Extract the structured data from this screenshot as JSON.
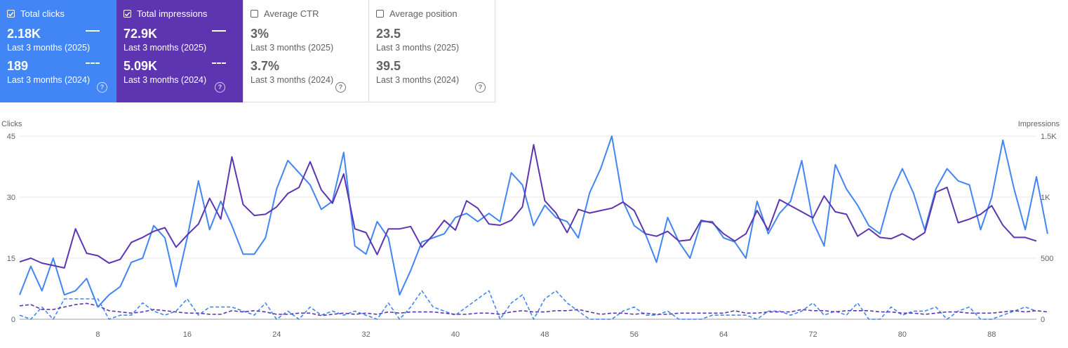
{
  "cards": {
    "clicks": {
      "label": "Total clicks",
      "checked": true,
      "current_value": "2.18K",
      "current_period": "Last 3 months (2025)",
      "previous_value": "189",
      "previous_period": "Last 3 months (2024)",
      "color": "#4285f4"
    },
    "impressions": {
      "label": "Total impressions",
      "checked": true,
      "current_value": "72.9K",
      "current_period": "Last 3 months (2025)",
      "previous_value": "5.09K",
      "previous_period": "Last 3 months (2024)",
      "color": "#5e35b1"
    },
    "ctr": {
      "label": "Average CTR",
      "checked": false,
      "current_value": "3%",
      "current_period": "Last 3 months (2025)",
      "previous_value": "3.7%",
      "previous_period": "Last 3 months (2024)"
    },
    "position": {
      "label": "Average position",
      "checked": false,
      "current_value": "23.5",
      "current_period": "Last 3 months (2025)",
      "previous_value": "39.5",
      "previous_period": "Last 3 months (2024)"
    }
  },
  "help_glyph": "?",
  "chart_data": {
    "type": "line",
    "ylabel_left": "Clicks",
    "ylabel_right": "Impressions",
    "yticks_left": [
      "0",
      "15",
      "30",
      "45"
    ],
    "yticks_right": [
      "0",
      "500",
      "1K",
      "1.5K"
    ],
    "ylim_left": [
      0,
      45
    ],
    "ylim_right": [
      0,
      1500
    ],
    "xlim": [
      1,
      92
    ],
    "xticks": [
      8,
      16,
      24,
      32,
      40,
      48,
      56,
      64,
      72,
      80,
      88
    ],
    "grid": true,
    "series": [
      {
        "axis": "left",
        "style": "solid",
        "color": "#4285f4",
        "values": [
          6,
          13,
          7,
          15,
          6,
          7,
          10,
          3,
          6,
          8,
          14,
          15,
          23,
          20,
          8,
          20,
          34,
          22,
          29,
          23,
          16,
          16,
          20,
          32,
          39,
          36,
          33,
          27,
          29,
          41,
          18,
          16,
          24,
          20,
          6,
          12,
          19,
          20,
          21,
          25,
          26,
          24,
          26,
          24,
          36,
          33,
          23,
          28,
          25,
          24,
          20,
          31,
          37,
          45,
          29,
          23,
          21,
          14,
          25,
          19,
          15,
          24,
          24,
          20,
          19,
          15,
          29,
          21,
          26,
          29,
          39,
          24,
          18,
          38,
          32,
          28,
          23,
          21,
          31,
          37,
          31,
          22,
          32,
          37,
          34,
          33,
          22,
          30,
          44,
          32,
          22,
          35,
          21
        ]
      },
      {
        "axis": "right",
        "style": "solid",
        "color": "#5e35b1",
        "values": [
          470,
          500,
          460,
          440,
          420,
          740,
          540,
          520,
          460,
          490,
          630,
          670,
          720,
          750,
          590,
          690,
          780,
          990,
          820,
          1330,
          940,
          850,
          860,
          920,
          1030,
          1080,
          1290,
          1060,
          950,
          1190,
          740,
          710,
          530,
          740,
          740,
          760,
          590,
          690,
          810,
          730,
          970,
          910,
          780,
          770,
          810,
          920,
          1430,
          970,
          870,
          710,
          900,
          870,
          890,
          910,
          960,
          890,
          700,
          680,
          720,
          640,
          650,
          810,
          790,
          700,
          640,
          700,
          890,
          730,
          980,
          930,
          880,
          830,
          1010,
          880,
          860,
          680,
          740,
          670,
          660,
          700,
          650,
          710,
          1040,
          1080,
          790,
          820,
          860,
          930,
          770,
          670,
          670,
          640
        ]
      },
      {
        "axis": "left",
        "style": "dashed",
        "color": "#4285f4",
        "values": [
          1,
          0,
          3,
          0,
          5,
          5,
          5,
          5,
          0,
          1,
          1,
          4,
          2,
          1,
          2,
          5,
          1,
          3,
          3,
          3,
          2,
          1,
          4,
          0,
          2,
          0,
          3,
          1,
          2,
          1,
          2,
          1,
          0,
          4,
          0,
          3,
          7,
          3,
          2,
          1,
          3,
          5,
          7,
          0,
          4,
          6,
          0,
          5,
          7,
          4,
          2,
          0,
          0,
          0,
          2,
          3,
          1,
          1,
          2,
          0,
          0,
          0,
          1,
          1,
          1,
          1,
          0,
          2,
          2,
          1,
          2,
          4,
          1,
          2,
          1,
          4,
          0,
          0,
          3,
          1,
          2,
          2,
          3,
          0,
          2,
          3,
          0,
          0,
          1,
          2,
          3,
          2
        ]
      },
      {
        "axis": "right",
        "style": "dashed",
        "color": "#5e35b1",
        "values": [
          110,
          120,
          80,
          80,
          100,
          120,
          130,
          110,
          70,
          60,
          50,
          60,
          80,
          70,
          60,
          50,
          50,
          40,
          40,
          70,
          60,
          70,
          60,
          40,
          40,
          50,
          50,
          30,
          40,
          50,
          40,
          50,
          40,
          60,
          50,
          60,
          60,
          60,
          50,
          40,
          40,
          50,
          50,
          40,
          60,
          70,
          60,
          60,
          70,
          70,
          80,
          60,
          40,
          50,
          50,
          40,
          50,
          40,
          40,
          50,
          50,
          50,
          50,
          50,
          70,
          50,
          50,
          60,
          60,
          60,
          80,
          70,
          70,
          60,
          70,
          70,
          70,
          60,
          60,
          50,
          50,
          40,
          50,
          60,
          60,
          50,
          50,
          50,
          60,
          70,
          60,
          70,
          60
        ]
      }
    ]
  }
}
